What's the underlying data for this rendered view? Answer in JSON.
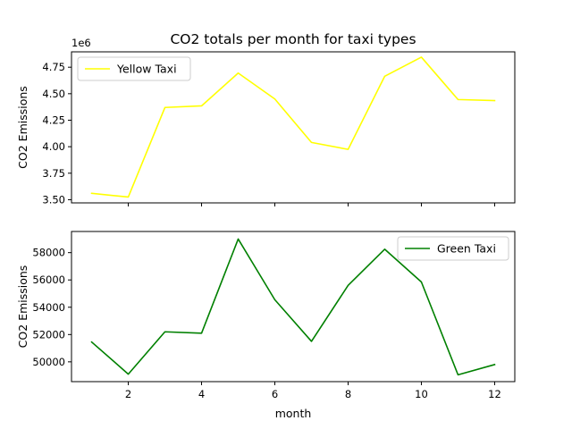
{
  "chart_data": {
    "type": "line",
    "title": "CO2 totals per month for taxi types",
    "xlabel": "month",
    "x": [
      1,
      2,
      3,
      4,
      5,
      6,
      7,
      8,
      9,
      10,
      11,
      12
    ],
    "x_ticks": [
      2,
      4,
      6,
      8,
      10,
      12
    ],
    "x_tick_labels": [
      "2",
      "4",
      "6",
      "8",
      "10",
      "12"
    ],
    "panels": [
      {
        "ylabel": "CO2 Emissions",
        "ylim": [
          3.47,
          4.895
        ],
        "y_ticks": [
          3.5,
          3.75,
          4.0,
          4.25,
          4.5,
          4.75
        ],
        "y_tick_labels": [
          "3.50",
          "3.75",
          "4.00",
          "4.25",
          "4.50",
          "4.75"
        ],
        "offset_label": "1e6",
        "show_x_tick_labels": false,
        "legend_placement": "upper left",
        "grid": false,
        "series": [
          {
            "name": "Yellow Taxi",
            "color": "#ffff00",
            "values": [
              3.56,
              3.525,
              4.37,
              4.385,
              4.695,
              4.45,
              4.04,
              3.975,
              4.665,
              4.845,
              4.445,
              4.435
            ]
          }
        ]
      },
      {
        "ylabel": "CO2 Emissions",
        "ylim": [
          48550,
          59550
        ],
        "y_ticks": [
          50000,
          52000,
          54000,
          56000,
          58000
        ],
        "y_tick_labels": [
          "50000",
          "52000",
          "54000",
          "56000",
          "58000"
        ],
        "offset_label": "",
        "show_x_tick_labels": true,
        "legend_placement": "upper right",
        "grid": false,
        "series": [
          {
            "name": "Green Taxi",
            "color": "#008000",
            "values": [
              51450,
              49100,
              52200,
              52100,
              59000,
              54550,
              51500,
              55600,
              58250,
              55850,
              49050,
              49800
            ]
          }
        ]
      }
    ]
  }
}
